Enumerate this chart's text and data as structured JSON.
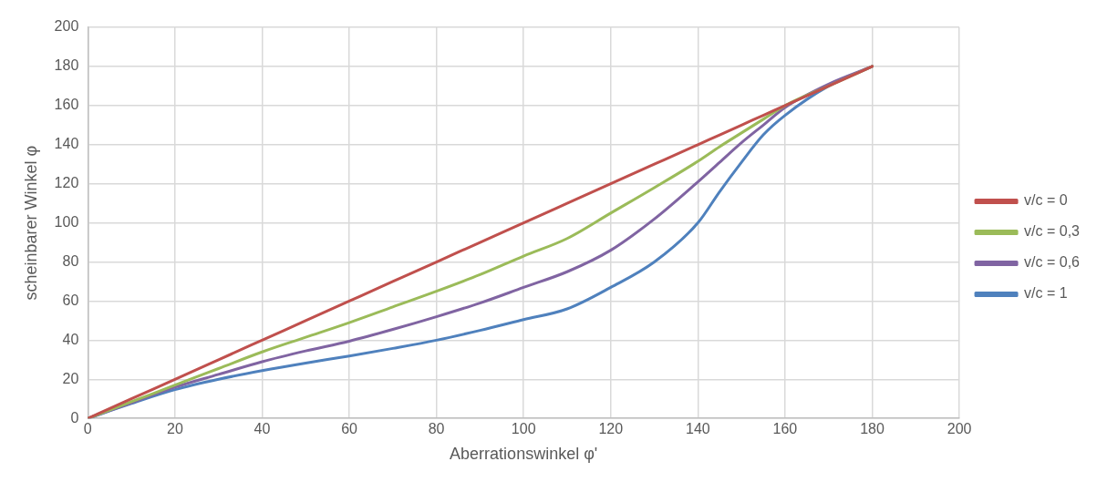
{
  "chart_data": {
    "type": "line",
    "xlabel": "Aberrationswinkel φ'",
    "ylabel": "scheinbarer Winkel φ",
    "xlim": [
      0,
      200
    ],
    "xticks": [
      0,
      20,
      40,
      60,
      80,
      100,
      120,
      140,
      160,
      180,
      200
    ],
    "ylim": [
      0,
      200
    ],
    "yticks": [
      0,
      20,
      40,
      60,
      80,
      100,
      120,
      140,
      160,
      180,
      200
    ],
    "grid": true,
    "legend": "right",
    "marker": "none",
    "line_style": "solid",
    "x": [
      0,
      10,
      20,
      30,
      40,
      50,
      60,
      70,
      80,
      90,
      100,
      110,
      120,
      130,
      140,
      145,
      150,
      155,
      160,
      170,
      180
    ],
    "series": [
      {
        "name": "v/c = 0",
        "color": "#c0504d",
        "values": [
          0,
          10,
          20,
          30,
          40,
          50,
          60,
          70,
          80,
          90,
          100,
          110,
          120,
          130,
          140,
          145,
          150,
          155,
          160,
          170,
          180
        ]
      },
      {
        "name": "v/c = 0,3",
        "color": "#9bbb59",
        "values": [
          0,
          8.5,
          17,
          25.5,
          34,
          41.5,
          49,
          57,
          65,
          73.5,
          83,
          92,
          105,
          118,
          131.5,
          139,
          146,
          153,
          160,
          170,
          180
        ]
      },
      {
        "name": "v/c = 0,6",
        "color": "#8064a2",
        "values": [
          0,
          8,
          16,
          22.5,
          29,
          34.5,
          39.5,
          45.5,
          52,
          59,
          67,
          75,
          86,
          102,
          121,
          131,
          141,
          150,
          159,
          171,
          180
        ]
      },
      {
        "name": "v/c = 1",
        "color": "#4f81bd",
        "values": [
          0,
          7.6,
          14.7,
          20,
          24.4,
          28.3,
          31.9,
          35.8,
          40,
          45,
          50.5,
          56,
          67,
          80,
          100,
          116,
          131,
          145,
          155,
          170,
          180
        ]
      }
    ]
  }
}
